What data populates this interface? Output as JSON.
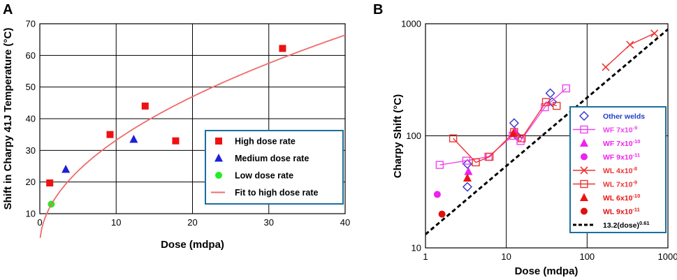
{
  "chart_data": [
    {
      "panel_label": "A",
      "type": "scatter",
      "xlabel": "Dose (mdpa)",
      "ylabel": "Shift in Charpy 41J Temperature (°C)",
      "xlim": [
        0,
        40
      ],
      "ylim": [
        10,
        70
      ],
      "xticks": [
        "0",
        "10",
        "20",
        "30",
        "40"
      ],
      "yticks": [
        "10",
        "20",
        "30",
        "40",
        "50",
        "60",
        "70"
      ],
      "grid": true,
      "legend_position": "center-right",
      "series": [
        {
          "name": "High dose rate",
          "marker": "square",
          "color": "#ee1111",
          "points": [
            [
              1.3,
              19.7
            ],
            [
              9.2,
              35
            ],
            [
              13.8,
              44
            ],
            [
              17.8,
              33
            ],
            [
              31.8,
              62.2
            ]
          ]
        },
        {
          "name": "Medium dose rate",
          "marker": "triangle",
          "color": "#1f1fd6",
          "points": [
            [
              3.4,
              24
            ],
            [
              12.3,
              33.5
            ]
          ]
        },
        {
          "name": "Low dose rate",
          "marker": "circle",
          "color": "#22ee22",
          "points": [
            [
              1.5,
              13
            ]
          ]
        },
        {
          "name": "Fit to high dose rate",
          "marker": "line",
          "color": "#ef6b6b",
          "fit": {
            "form": "a*x^b",
            "a": 10.5,
            "b": 0.5,
            "x_range": [
              0.05,
              40
            ]
          }
        }
      ]
    },
    {
      "panel_label": "B",
      "type": "scatter",
      "xlabel": "Dose (mdpa)",
      "ylabel": "Charpy Shift (°C)",
      "xscale": "log",
      "yscale": "log",
      "xlim": [
        1,
        1000
      ],
      "ylim": [
        10,
        1000
      ],
      "xticks": [
        "1",
        "10",
        "100",
        "1000"
      ],
      "yticks": [
        "10",
        "100",
        "1000"
      ],
      "grid": true,
      "legend_position": "right",
      "series": [
        {
          "name": "Other welds",
          "marker": "diamond-open",
          "color": "#3333cc",
          "line": false,
          "points": [
            [
              3.3,
              56
            ],
            [
              3.3,
              35
            ],
            [
              12.5,
              130
            ],
            [
              13.5,
              100
            ],
            [
              35,
              240
            ],
            [
              37,
              200
            ]
          ]
        },
        {
          "name": "WF 7x10",
          "sup": "-9",
          "marker": "square-open",
          "color": "#ee44ee",
          "line": true,
          "points": [
            [
              1.5,
              55
            ],
            [
              3.2,
              60
            ],
            [
              6,
              65
            ],
            [
              12,
              100
            ],
            [
              15,
              90
            ],
            [
              30,
              180
            ],
            [
              55,
              265
            ]
          ]
        },
        {
          "name": "WF 7x10",
          "sup": "-10",
          "marker": "triangle",
          "color": "#ee22ee",
          "line": false,
          "points": [
            [
              3.4,
              48
            ],
            [
              12.8,
              110
            ]
          ]
        },
        {
          "name": "WF 9x10",
          "sup": "-11",
          "marker": "circle",
          "color": "#ee22ee",
          "line": false,
          "points": [
            [
              1.4,
              30
            ]
          ]
        },
        {
          "name": "WL 4x10",
          "sup": "-8",
          "marker": "x",
          "color": "#ee3333",
          "line": true,
          "points": [
            [
              170,
              410
            ],
            [
              340,
              650
            ],
            [
              680,
              820
            ]
          ]
        },
        {
          "name": "WL 7x10",
          "sup": "-9",
          "marker": "square-open",
          "color": "#ee3333",
          "line": true,
          "points": [
            [
              2.2,
              95
            ],
            [
              4.2,
              58
            ],
            [
              6.2,
              65
            ],
            [
              12.5,
              108
            ],
            [
              15.5,
              95
            ],
            [
              31,
              200
            ],
            [
              42,
              185
            ]
          ]
        },
        {
          "name": "WL 6x10",
          "sup": "-10",
          "marker": "triangle",
          "color": "#ee1111",
          "line": false,
          "points": [
            [
              3.3,
              42
            ],
            [
              12.2,
              105
            ]
          ]
        },
        {
          "name": "WL 9x10",
          "sup": "-11",
          "marker": "circle",
          "color": "#dd1111",
          "line": false,
          "points": [
            [
              1.6,
              20
            ]
          ]
        },
        {
          "name": "13.2(dose)",
          "sup": "0.61",
          "marker": "dashed-line",
          "color": "#000000",
          "fit": {
            "form": "a*x^b",
            "a": 13.2,
            "b": 0.61,
            "x_range": [
              1,
              1000
            ]
          }
        }
      ]
    }
  ]
}
